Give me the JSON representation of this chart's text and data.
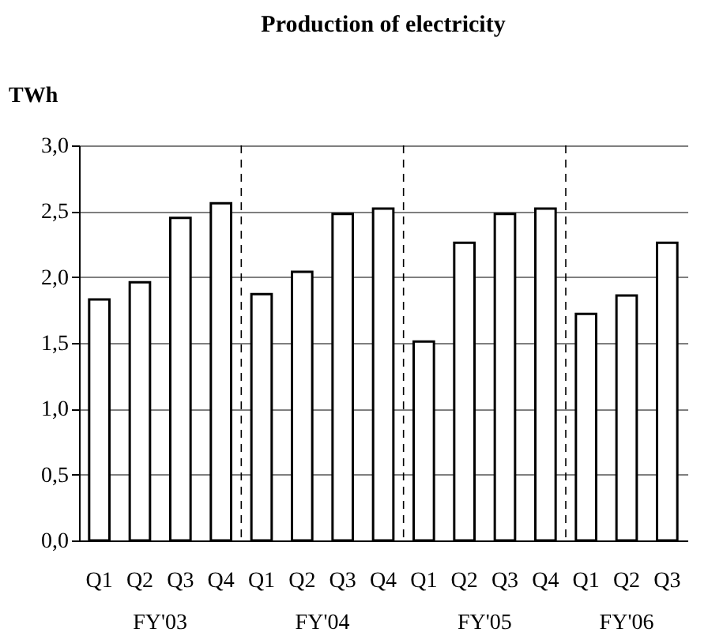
{
  "chart_data": {
    "type": "bar",
    "title": "Production of electricity",
    "ylabel": "TWh",
    "categories": [
      "Q1",
      "Q2",
      "Q3",
      "Q4",
      "Q1",
      "Q2",
      "Q3",
      "Q4",
      "Q1",
      "Q2",
      "Q3",
      "Q4",
      "Q1",
      "Q2",
      "Q3"
    ],
    "values": [
      1.83,
      1.96,
      2.45,
      2.56,
      1.87,
      2.04,
      2.48,
      2.52,
      1.51,
      2.26,
      2.48,
      2.52,
      1.72,
      1.86,
      2.26
    ],
    "color": "#ffffff",
    "ylim": [
      0,
      3
    ],
    "yticks": [
      {
        "value": 0,
        "label": "0,0"
      },
      {
        "value": 0.5,
        "label": "0,5"
      },
      {
        "value": 1,
        "label": "1,0"
      },
      {
        "value": 1.5,
        "label": "1,5"
      },
      {
        "value": 2,
        "label": "2,0"
      },
      {
        "value": 2.5,
        "label": "2,5"
      },
      {
        "value": 3,
        "label": "3,0"
      }
    ],
    "grid": "y",
    "annotations": [
      "FY'03",
      "FY'04",
      "FY'05",
      "FY'06"
    ]
  }
}
